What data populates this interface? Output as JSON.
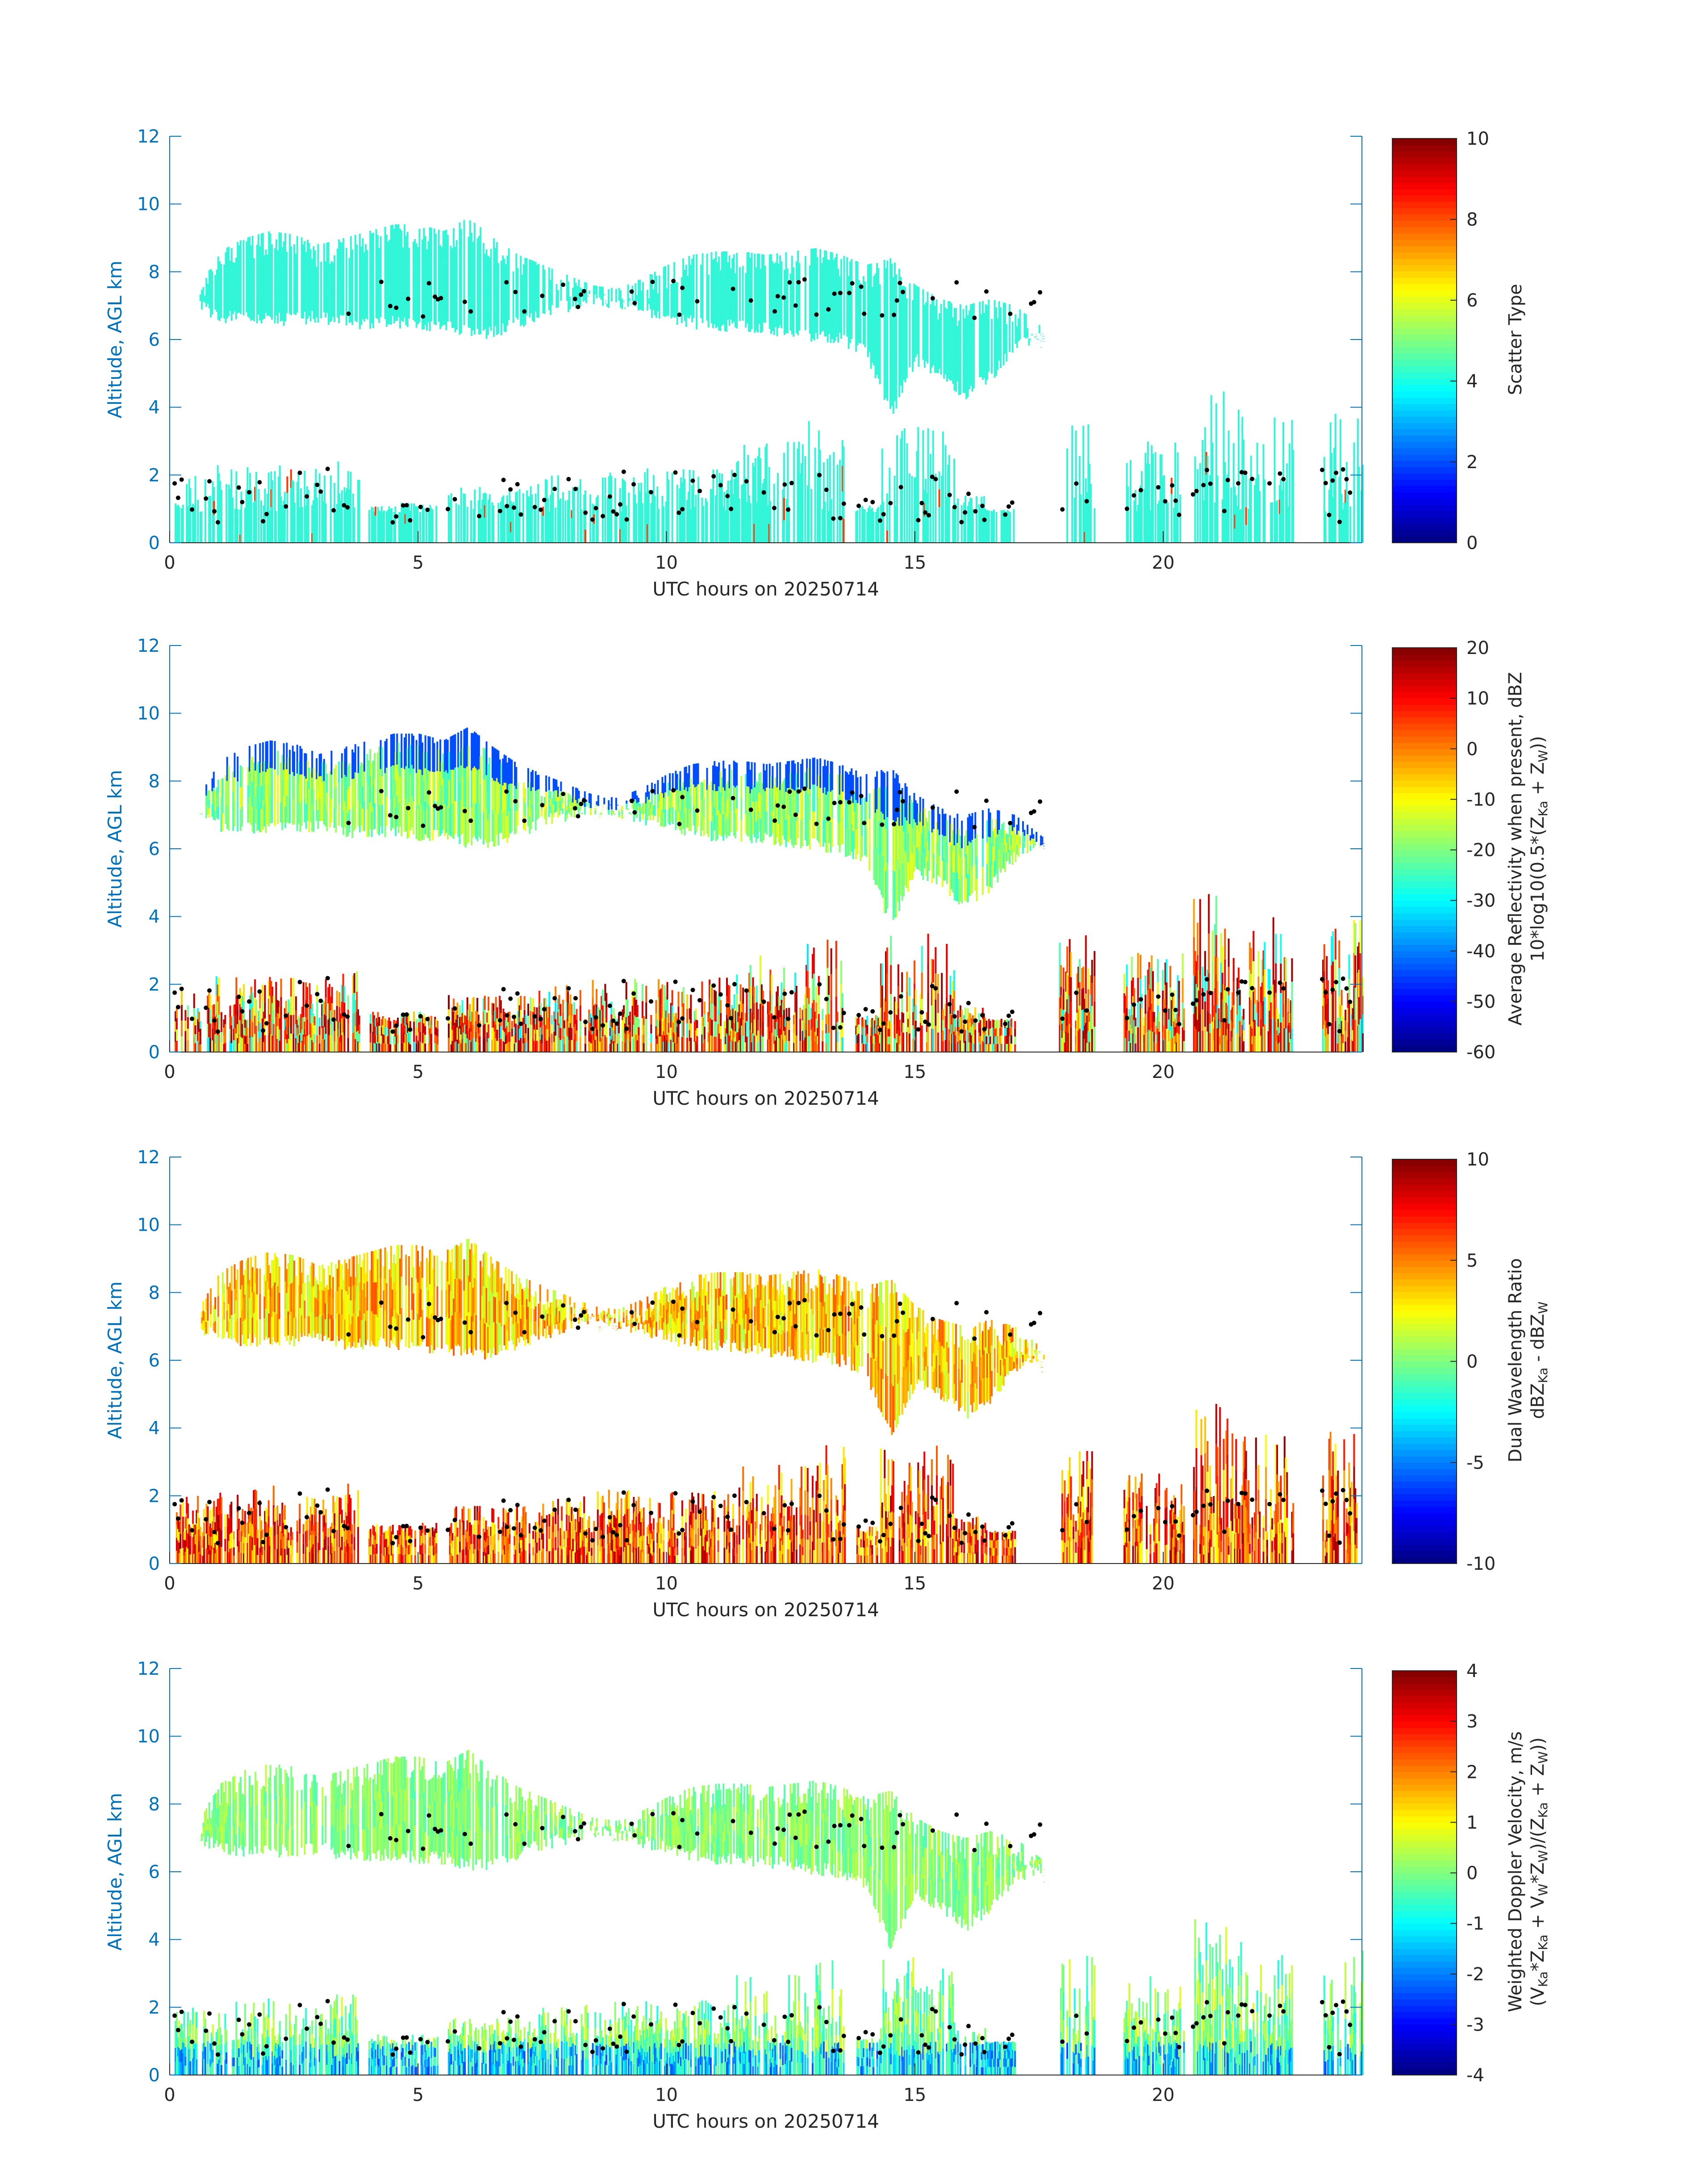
{
  "figure": {
    "date_label": "UTC hours on 20250714"
  },
  "chart_data": [
    {
      "type": "heatmap",
      "xlabel": "UTC hours on 20250714",
      "ylabel": "Altitude, AGL km",
      "xlim": [
        0,
        24
      ],
      "ylim": [
        0,
        12
      ],
      "xticks": [
        "0",
        "5",
        "10",
        "15",
        "20"
      ],
      "yticks": [
        "0",
        "2",
        "4",
        "6",
        "8",
        "10",
        "12"
      ],
      "colorbar": {
        "colormap": "jet",
        "clim": [
          0,
          10
        ],
        "ticks": [
          "0",
          "2",
          "4",
          "6",
          "8",
          "10"
        ],
        "label_line1": "Scatter Type",
        "label_line2": ""
      },
      "field_style": "scatter",
      "accent_color": "#33f5d8"
    },
    {
      "type": "heatmap",
      "xlabel": "UTC hours on 20250714",
      "ylabel": "Altitude, AGL km",
      "xlim": [
        0,
        24
      ],
      "ylim": [
        0,
        12
      ],
      "xticks": [
        "0",
        "5",
        "10",
        "15",
        "20"
      ],
      "yticks": [
        "0",
        "2",
        "4",
        "6",
        "8",
        "10",
        "12"
      ],
      "colorbar": {
        "colormap": "jet",
        "clim": [
          -60,
          20
        ],
        "ticks": [
          "-60",
          "-50",
          "-40",
          "-30",
          "-20",
          "-10",
          "0",
          "10",
          "20"
        ],
        "label_line1": "Average Reflectivity when present, dBZ",
        "label_line2": "10*log10(0.5*(Z",
        "label_line2_sub1": "Ka",
        "label_line2_mid": " + Z",
        "label_line2_sub2": "W",
        "label_line2_end": "))"
      },
      "field_style": "reflectivity"
    },
    {
      "type": "heatmap",
      "xlabel": "UTC hours on 20250714",
      "ylabel": "Altitude, AGL km",
      "xlim": [
        0,
        24
      ],
      "ylim": [
        0,
        12
      ],
      "xticks": [
        "0",
        "5",
        "10",
        "15",
        "20"
      ],
      "yticks": [
        "0",
        "2",
        "4",
        "6",
        "8",
        "10",
        "12"
      ],
      "colorbar": {
        "colormap": "jet",
        "clim": [
          -10,
          10
        ],
        "ticks": [
          "-10",
          "-5",
          "0",
          "5",
          "10"
        ],
        "label_line1": "Dual Wavelength Ratio",
        "label_line2": "dBZ",
        "label_line2_sub1": "Ka",
        "label_line2_mid": " - dBZ",
        "label_line2_sub2": "W",
        "label_line2_end": ""
      },
      "field_style": "dwr"
    },
    {
      "type": "heatmap",
      "xlabel": "UTC hours on 20250714",
      "ylabel": "Altitude, AGL km",
      "xlim": [
        0,
        24
      ],
      "ylim": [
        0,
        12
      ],
      "xticks": [
        "0",
        "5",
        "10",
        "15",
        "20"
      ],
      "yticks": [
        "0",
        "2",
        "4",
        "6",
        "8",
        "10",
        "12"
      ],
      "colorbar": {
        "colormap": "jet",
        "clim": [
          -4,
          4
        ],
        "ticks": [
          "-4",
          "-3",
          "-2",
          "-1",
          "0",
          "1",
          "2",
          "3",
          "4"
        ],
        "label_line1": "Weighted Doppler Velocity, m/s",
        "label_line2": "(V",
        "label_line2_sub1": "Ka",
        "label_line2_mid": "*Z",
        "label_line2_sub2": "Ka",
        "label_line2_end": " + V",
        "label_line2_sub3": "W",
        "label_line2_mid3": "*Z",
        "label_line2_sub4": "W",
        "label_line2_end2": ")/(Z",
        "label_line2_sub5": "Ka",
        "label_line2_mid5": " + Z",
        "label_line2_sub6": "W",
        "label_line2_end3": "))"
      },
      "field_style": "velocity"
    }
  ],
  "cloud_layers": {
    "upper": {
      "x_start": 0.6,
      "x_end": 17.6,
      "profile": [
        [
          0.6,
          6.8,
          7.6
        ],
        [
          1.0,
          6.5,
          8.6
        ],
        [
          1.5,
          6.4,
          9.0
        ],
        [
          2.0,
          6.4,
          9.2
        ],
        [
          2.5,
          6.4,
          9.1
        ],
        [
          3.0,
          6.5,
          8.8
        ],
        [
          3.5,
          6.3,
          9.0
        ],
        [
          4.0,
          6.3,
          9.2
        ],
        [
          4.5,
          6.3,
          9.4
        ],
        [
          5.0,
          6.2,
          9.4
        ],
        [
          5.5,
          6.2,
          9.2
        ],
        [
          6.0,
          6.0,
          9.6
        ],
        [
          6.5,
          6.0,
          9.0
        ],
        [
          7.0,
          6.3,
          8.5
        ],
        [
          7.5,
          6.6,
          8.2
        ],
        [
          8.0,
          6.8,
          7.9
        ],
        [
          8.5,
          7.0,
          7.6
        ],
        [
          9.0,
          6.9,
          7.5
        ],
        [
          9.5,
          6.7,
          7.8
        ],
        [
          10.0,
          6.5,
          8.2
        ],
        [
          10.5,
          6.3,
          8.5
        ],
        [
          11.0,
          6.2,
          8.6
        ],
        [
          11.5,
          6.2,
          8.6
        ],
        [
          12.0,
          6.1,
          8.5
        ],
        [
          12.5,
          6.0,
          8.6
        ],
        [
          13.0,
          5.9,
          8.7
        ],
        [
          13.5,
          5.8,
          8.5
        ],
        [
          14.0,
          5.5,
          8.2
        ],
        [
          14.5,
          3.6,
          8.4
        ],
        [
          15.0,
          5.2,
          7.6
        ],
        [
          15.5,
          4.8,
          7.2
        ],
        [
          16.0,
          4.2,
          7.0
        ],
        [
          16.5,
          4.7,
          7.2
        ],
        [
          17.0,
          5.6,
          7.0
        ],
        [
          17.6,
          6.0,
          6.3
        ]
      ]
    },
    "lower_segments": [
      [
        0.1,
        0.9,
        2.0
      ],
      [
        0.9,
        2.2,
        2.3
      ],
      [
        2.2,
        3.3,
        2.2
      ],
      [
        3.3,
        3.8,
        2.4
      ],
      [
        4.0,
        5.4,
        1.2
      ],
      [
        5.6,
        7.4,
        1.7
      ],
      [
        7.4,
        8.3,
        2.0
      ],
      [
        8.3,
        9.2,
        2.2
      ],
      [
        9.2,
        11.4,
        2.2
      ],
      [
        11.4,
        12.8,
        3.0
      ],
      [
        12.8,
        13.6,
        3.6
      ],
      [
        13.8,
        14.3,
        1.1
      ],
      [
        14.3,
        15.8,
        3.5
      ],
      [
        15.8,
        16.4,
        1.4
      ],
      [
        16.4,
        17.0,
        1.0
      ],
      [
        17.9,
        18.6,
        3.6
      ],
      [
        19.2,
        20.4,
        3.0
      ],
      [
        20.6,
        21.3,
        4.8
      ],
      [
        21.3,
        22.6,
        4.0
      ],
      [
        23.2,
        24.0,
        3.9
      ]
    ]
  }
}
